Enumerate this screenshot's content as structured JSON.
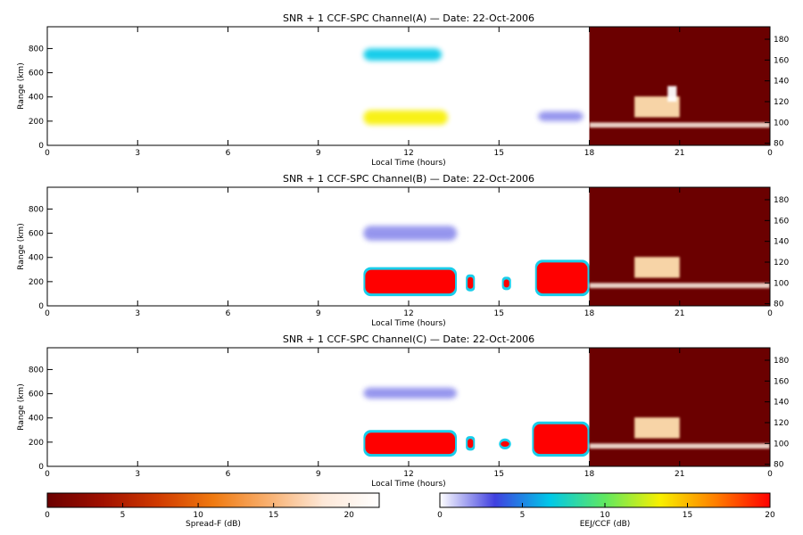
{
  "colors": {
    "background": "#ffffff",
    "axis": "#000000",
    "night_panel_bg": "#6b0000",
    "spread_f_colormap": [
      "#6b0000",
      "#a01000",
      "#d03a00",
      "#f07a10",
      "#f8b070",
      "#fde8d8",
      "#ffffff"
    ],
    "eej_colormap": [
      "#ffffff",
      "#4040e0",
      "#00c8e8",
      "#60e860",
      "#f8f000",
      "#ff8000",
      "#ff0000"
    ]
  },
  "colorbars": [
    {
      "label": "Spread-F (dB)",
      "ticks": [
        "0",
        "5",
        "10",
        "15",
        "20"
      ],
      "range": [
        0,
        22
      ]
    },
    {
      "label": "EEJ/CCF (dB)",
      "ticks": [
        "0",
        "5",
        "10",
        "15",
        "20"
      ],
      "range": [
        0,
        20
      ]
    }
  ],
  "chart_data": [
    {
      "type": "heatmap",
      "title": "SNR + 1 CCF-SPC Channel(A) — Date: 22-Oct-2006",
      "xlabel": "Local Time (hours)",
      "ylabel": "Range (km)",
      "xticks": [
        "0",
        "3",
        "6",
        "9",
        "12",
        "15",
        "18",
        "21",
        "0"
      ],
      "xlim": [
        0,
        24
      ],
      "yticks_left": [
        "0",
        "200",
        "400",
        "600",
        "800"
      ],
      "ylim_left": [
        0,
        980
      ],
      "yticks_right": [
        "80",
        "100",
        "120",
        "140",
        "160",
        "180"
      ],
      "ylim_right": [
        78,
        192
      ],
      "day_period_hours": [
        10.5,
        18
      ],
      "night_period_hours": [
        18,
        24
      ],
      "features": [
        {
          "kind": "eej_layer",
          "t_start": 10.5,
          "t_end": 13.3,
          "range_km": [
            170,
            290
          ],
          "peak_db": 14
        },
        {
          "kind": "eej_layer",
          "t_start": 10.5,
          "t_end": 13.1,
          "range_km": [
            700,
            800
          ],
          "peak_db": 7
        },
        {
          "kind": "weak_echo",
          "t_start": 16.3,
          "t_end": 17.8,
          "range_km": [
            200,
            280
          ],
          "peak_db": 3
        },
        {
          "kind": "spread_f",
          "t_start": 19.5,
          "t_end": 21.0,
          "range_km": [
            105,
            125
          ],
          "peak_db": 20
        },
        {
          "kind": "spread_f_plume",
          "t_start": 20.6,
          "t_end": 20.9,
          "range_km": [
            120,
            135
          ],
          "peak_db": 22
        },
        {
          "kind": "e_layer",
          "t_start": 18.0,
          "t_end": 24.0,
          "range_km": [
            95,
            100
          ],
          "peak_db": 22
        }
      ]
    },
    {
      "type": "heatmap",
      "title": "SNR + 1 CCF-SPC Channel(B) — Date: 22-Oct-2006",
      "xlabel": "Local Time (hours)",
      "ylabel": "Range (km)",
      "xticks": [
        "0",
        "3",
        "6",
        "9",
        "12",
        "15",
        "18",
        "21",
        "0"
      ],
      "xlim": [
        0,
        24
      ],
      "yticks_left": [
        "0",
        "200",
        "400",
        "600",
        "800"
      ],
      "ylim_left": [
        0,
        980
      ],
      "yticks_right": [
        "80",
        "100",
        "120",
        "140",
        "160",
        "180"
      ],
      "ylim_right": [
        78,
        192
      ],
      "day_period_hours": [
        10.5,
        18
      ],
      "night_period_hours": [
        18,
        24
      ],
      "features": [
        {
          "kind": "ccf_saturated",
          "t_start": 10.5,
          "t_end": 13.6,
          "range_km": [
            80,
            320
          ],
          "peak_db": 20
        },
        {
          "kind": "ccf_blob",
          "t_start": 13.9,
          "t_end": 14.2,
          "range_km": [
            120,
            260
          ],
          "peak_db": 20
        },
        {
          "kind": "ccf_blob",
          "t_start": 15.1,
          "t_end": 15.4,
          "range_km": [
            130,
            240
          ],
          "peak_db": 20
        },
        {
          "kind": "ccf_saturated",
          "t_start": 16.2,
          "t_end": 18.0,
          "range_km": [
            80,
            380
          ],
          "peak_db": 20
        },
        {
          "kind": "weak_echo",
          "t_start": 10.5,
          "t_end": 13.6,
          "range_km": [
            540,
            660
          ],
          "peak_db": 4
        },
        {
          "kind": "spread_f",
          "t_start": 19.5,
          "t_end": 21.0,
          "range_km": [
            105,
            125
          ],
          "peak_db": 20
        },
        {
          "kind": "e_layer",
          "t_start": 18.0,
          "t_end": 24.0,
          "range_km": [
            95,
            100
          ],
          "peak_db": 22
        }
      ]
    },
    {
      "type": "heatmap",
      "title": "SNR + 1 CCF-SPC Channel(C) — Date: 22-Oct-2006",
      "xlabel": "Local Time (hours)",
      "ylabel": "Range (km)",
      "xticks": [
        "0",
        "3",
        "6",
        "9",
        "12",
        "15",
        "18",
        "21",
        "0"
      ],
      "xlim": [
        0,
        24
      ],
      "yticks_left": [
        "0",
        "200",
        "400",
        "600",
        "800"
      ],
      "ylim_left": [
        0,
        980
      ],
      "yticks_right": [
        "80",
        "100",
        "120",
        "140",
        "160",
        "180"
      ],
      "ylim_right": [
        78,
        192
      ],
      "day_period_hours": [
        10.5,
        18
      ],
      "night_period_hours": [
        18,
        24
      ],
      "features": [
        {
          "kind": "ccf_saturated",
          "t_start": 10.5,
          "t_end": 13.6,
          "range_km": [
            80,
            300
          ],
          "peak_db": 20
        },
        {
          "kind": "ccf_blob",
          "t_start": 13.9,
          "t_end": 14.2,
          "range_km": [
            130,
            250
          ],
          "peak_db": 20
        },
        {
          "kind": "ccf_blob",
          "t_start": 15.0,
          "t_end": 15.4,
          "range_km": [
            140,
            230
          ],
          "peak_db": 20
        },
        {
          "kind": "ccf_saturated",
          "t_start": 16.1,
          "t_end": 18.0,
          "range_km": [
            80,
            370
          ],
          "peak_db": 20
        },
        {
          "kind": "weak_echo",
          "t_start": 10.5,
          "t_end": 13.6,
          "range_km": [
            560,
            650
          ],
          "peak_db": 3
        },
        {
          "kind": "spread_f",
          "t_start": 19.5,
          "t_end": 21.0,
          "range_km": [
            105,
            125
          ],
          "peak_db": 20
        },
        {
          "kind": "e_layer",
          "t_start": 18.0,
          "t_end": 24.0,
          "range_km": [
            95,
            100
          ],
          "peak_db": 22
        }
      ]
    }
  ]
}
